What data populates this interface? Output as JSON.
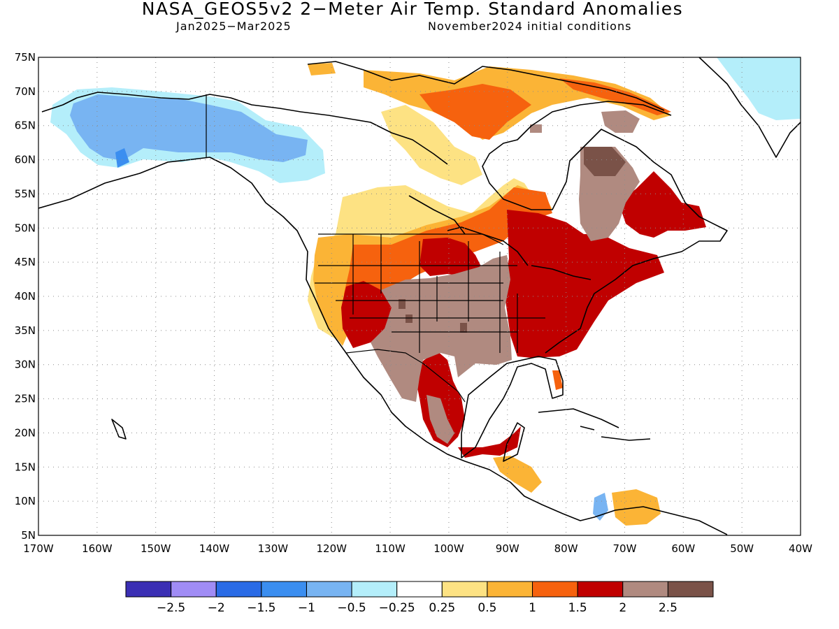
{
  "title": "NASA_GEOS5v2 2−Meter Air Temp. Standard Anomalies",
  "subtitle_left": "Jan2025−Mar2025",
  "subtitle_right": "November2024 initial conditions",
  "map": {
    "lon_range": [
      -170,
      -40
    ],
    "lat_range": [
      5,
      75
    ],
    "lat_ticks": [
      "75N",
      "70N",
      "65N",
      "60N",
      "55N",
      "50N",
      "45N",
      "40N",
      "35N",
      "30N",
      "25N",
      "20N",
      "15N",
      "10N",
      "5N"
    ],
    "lon_ticks": [
      "170W",
      "160W",
      "150W",
      "140W",
      "130W",
      "120W",
      "110W",
      "100W",
      "90W",
      "80W",
      "70W",
      "60W",
      "50W",
      "40W"
    ],
    "grid": "dotted"
  },
  "colorbar": {
    "colors": [
      "#3b2fb4",
      "#a08cf5",
      "#2a6be6",
      "#3b8ef0",
      "#78b4f2",
      "#b4eefa",
      "#ffffff",
      "#fde283",
      "#fbb436",
      "#f6620e",
      "#c00000",
      "#b08a80",
      "#7a5248"
    ],
    "labels": [
      "−2.5",
      "−2",
      "−1.5",
      "−1",
      "−0.5",
      "−0.25",
      "0.25",
      "0.5",
      "1",
      "1.5",
      "2",
      "2.5"
    ]
  }
}
